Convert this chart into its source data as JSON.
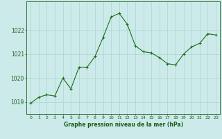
{
  "x": [
    0,
    1,
    2,
    3,
    4,
    5,
    6,
    7,
    8,
    9,
    10,
    11,
    12,
    13,
    14,
    15,
    16,
    17,
    18,
    19,
    20,
    21,
    22,
    23
  ],
  "y": [
    1018.95,
    1019.2,
    1019.3,
    1019.25,
    1020.0,
    1019.55,
    1020.45,
    1020.45,
    1020.9,
    1021.7,
    1022.55,
    1022.7,
    1022.25,
    1021.35,
    1021.1,
    1021.05,
    1020.85,
    1020.6,
    1020.55,
    1021.0,
    1021.3,
    1021.45,
    1021.85,
    1021.8
  ],
  "line_color": "#1a6e1a",
  "marker": "+",
  "marker_size": 3,
  "marker_lw": 0.8,
  "bg_color": "#cdeaea",
  "grid_color": "#a8d5d0",
  "xlabel": "Graphe pression niveau de la mer (hPa)",
  "xlabel_color": "#1a5e1a",
  "tick_color": "#1a5e1a",
  "ylim": [
    1018.5,
    1023.2
  ],
  "yticks": [
    1019,
    1020,
    1021,
    1022
  ],
  "xlim": [
    -0.5,
    23.5
  ],
  "xticks": [
    0,
    1,
    2,
    3,
    4,
    5,
    6,
    7,
    8,
    9,
    10,
    11,
    12,
    13,
    14,
    15,
    16,
    17,
    18,
    19,
    20,
    21,
    22,
    23
  ]
}
